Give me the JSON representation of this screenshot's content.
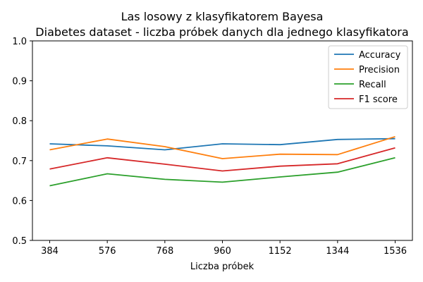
{
  "chart_data": {
    "type": "line",
    "title": "Las losowy z klasyfikatorem Bayesa",
    "subtitle": "Diabetes dataset - liczba próbek danych dla jednego klasyfikatora",
    "xlabel": "Liczba próbek",
    "ylabel": "",
    "x": [
      384,
      576,
      768,
      960,
      1152,
      1344,
      1536
    ],
    "x_tick_labels": [
      "384",
      "576",
      "768",
      "960",
      "1152",
      "1344",
      "1536"
    ],
    "ylim": [
      0.5,
      1.0
    ],
    "y_ticks": [
      0.5,
      0.6,
      0.7,
      0.8,
      0.9,
      1.0
    ],
    "y_tick_labels": [
      "0.5",
      "0.6",
      "0.7",
      "0.8",
      "0.9",
      "1.0"
    ],
    "grid": false,
    "legend_position": "top-right",
    "series": [
      {
        "name": "Accuracy",
        "color": "#1f77b4",
        "values": [
          0.742,
          0.737,
          0.727,
          0.742,
          0.74,
          0.753,
          0.755
        ]
      },
      {
        "name": "Precision",
        "color": "#ff7f0e",
        "values": [
          0.727,
          0.754,
          0.735,
          0.705,
          0.716,
          0.715,
          0.76
        ]
      },
      {
        "name": "Recall",
        "color": "#2ca02c",
        "values": [
          0.637,
          0.667,
          0.653,
          0.646,
          0.659,
          0.671,
          0.707
        ]
      },
      {
        "name": "F1 score",
        "color": "#d62728",
        "values": [
          0.679,
          0.707,
          0.691,
          0.674,
          0.686,
          0.692,
          0.732
        ]
      }
    ]
  }
}
